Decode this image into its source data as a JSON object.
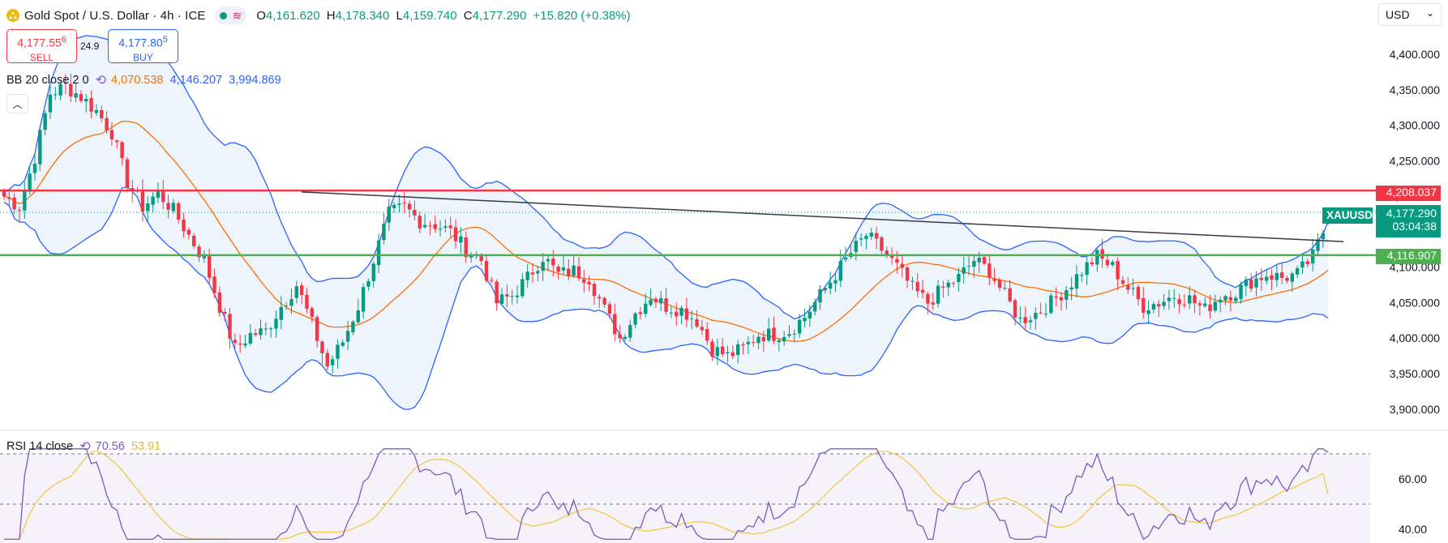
{
  "header": {
    "title": "Gold Spot / U.S. Dollar · 4h · ICE",
    "ohlc": [
      {
        "k": "O",
        "v": "4,161.620"
      },
      {
        "k": "H",
        "v": "4,178.340"
      },
      {
        "k": "L",
        "v": "4,159.740"
      },
      {
        "k": "C",
        "v": "4,177.290"
      }
    ],
    "change": "+15.820 (+0.38%)",
    "status_icon": "market-open-dot",
    "wave_icon": "tilde-wave-icon"
  },
  "trade": {
    "sell_price": "4,177.55",
    "sell_price_small": "6",
    "sell_label": "SELL",
    "buy_price": "4,177.80",
    "buy_price_small": "5",
    "buy_label": "BUY",
    "spread": "24.9"
  },
  "bb_legend": {
    "name": "BB 20 close 2 0",
    "basis": "4,070.538",
    "upper": "4,146.207",
    "lower": "3,994.869",
    "colors": {
      "basis": "#ff6d00",
      "bands": "#2962ff"
    }
  },
  "rsi_legend": {
    "name": "RSI 14 close",
    "rsi": "70.56",
    "ma": "53.91",
    "colors": {
      "rsi": "#7e57c2",
      "ma": "#f2c94c"
    }
  },
  "currency": "USD",
  "tags": {
    "resistance": "4,208.037",
    "symbol": "XAUUSD",
    "last": "4,177.290",
    "countdown": "03:04:38",
    "support": "4,116.907"
  },
  "colors": {
    "up": "#089981",
    "down": "#f23645",
    "resistance": "#f23645",
    "support": "#4caf50",
    "trendline": "#363a45",
    "band_fill": "#e8f0fb"
  },
  "chart_data": [
    {
      "type": "candlestick",
      "title": "Gold Spot / U.S. Dollar · 4h · ICE",
      "y_axis_ticks": [
        "4,400.000",
        "4,350.000",
        "4,300.000",
        "4,250.000",
        "4,200.000",
        "4,150.000",
        "4,100.000",
        "4,050.000",
        "4,000.000",
        "3,950.000",
        "3,900.000"
      ],
      "ylim": [
        3880,
        4430
      ],
      "last_price": 4177.29,
      "horizontal_levels": [
        {
          "price": 4208.037,
          "color": "#f23645"
        },
        {
          "price": 4116.907,
          "color": "#4caf50"
        }
      ],
      "trendline": {
        "from": [
          58,
          4206
        ],
        "to": [
          261,
          4136
        ]
      },
      "close_anchors": [
        [
          0,
          4200
        ],
        [
          3,
          4185
        ],
        [
          6,
          4255
        ],
        [
          9,
          4345
        ],
        [
          12,
          4355
        ],
        [
          15,
          4340
        ],
        [
          18,
          4320
        ],
        [
          21,
          4290
        ],
        [
          24,
          4220
        ],
        [
          27,
          4185
        ],
        [
          30,
          4205
        ],
        [
          33,
          4180
        ],
        [
          36,
          4145
        ],
        [
          39,
          4110
        ],
        [
          42,
          4045
        ],
        [
          45,
          3985
        ],
        [
          48,
          4005
        ],
        [
          51,
          4010
        ],
        [
          54,
          4045
        ],
        [
          57,
          4075
        ],
        [
          60,
          4020
        ],
        [
          63,
          3960
        ],
        [
          66,
          3995
        ],
        [
          69,
          4045
        ],
        [
          72,
          4110
        ],
        [
          75,
          4175
        ],
        [
          78,
          4185
        ],
        [
          81,
          4165
        ],
        [
          84,
          4160
        ],
        [
          87,
          4150
        ],
        [
          90,
          4125
        ],
        [
          93,
          4110
        ],
        [
          96,
          4050
        ],
        [
          99,
          4060
        ],
        [
          102,
          4085
        ],
        [
          105,
          4115
        ],
        [
          108,
          4090
        ],
        [
          111,
          4095
        ],
        [
          114,
          4085
        ],
        [
          117,
          4040
        ],
        [
          120,
          4000
        ],
        [
          123,
          4035
        ],
        [
          126,
          4060
        ],
        [
          129,
          4045
        ],
        [
          132,
          4040
        ],
        [
          135,
          4025
        ],
        [
          138,
          3985
        ],
        [
          141,
          3975
        ],
        [
          144,
          3985
        ],
        [
          147,
          4005
        ],
        [
          150,
          4005
        ],
        [
          153,
          4010
        ],
        [
          156,
          4030
        ],
        [
          159,
          4060
        ],
        [
          162,
          4090
        ],
        [
          165,
          4120
        ],
        [
          168,
          4145
        ],
        [
          171,
          4125
        ],
        [
          174,
          4100
        ],
        [
          177,
          4070
        ],
        [
          180,
          4050
        ],
        [
          183,
          4070
        ],
        [
          186,
          4085
        ],
        [
          189,
          4110
        ],
        [
          192,
          4095
        ],
        [
          195,
          4060
        ],
        [
          198,
          4025
        ],
        [
          201,
          4035
        ],
        [
          204,
          4050
        ],
        [
          207,
          4070
        ],
        [
          210,
          4095
        ],
        [
          213,
          4115
        ],
        [
          216,
          4100
        ],
        [
          219,
          4070
        ],
        [
          222,
          4045
        ],
        [
          225,
          4050
        ],
        [
          228,
          4060
        ],
        [
          231,
          4055
        ],
        [
          234,
          4040
        ],
        [
          237,
          4060
        ],
        [
          240,
          4065
        ],
        [
          243,
          4080
        ],
        [
          246,
          4090
        ],
        [
          249,
          4085
        ],
        [
          252,
          4090
        ],
        [
          255,
          4115
        ],
        [
          257,
          4150
        ],
        [
          258,
          4177.29
        ]
      ],
      "bollinger": {
        "period": 20,
        "basis_color": "#ff6d00",
        "band_color": "#2962ff"
      }
    },
    {
      "type": "line",
      "title": "RSI 14 close",
      "y_axis_ticks": [
        "60.00",
        "40.00"
      ],
      "ylim": [
        35,
        73
      ],
      "levels": [
        70,
        50
      ],
      "series": [
        {
          "name": "RSI",
          "color": "#7e57c2",
          "last": 70.56
        },
        {
          "name": "MA",
          "color": "#f2c94c",
          "last": 53.91
        }
      ]
    }
  ]
}
